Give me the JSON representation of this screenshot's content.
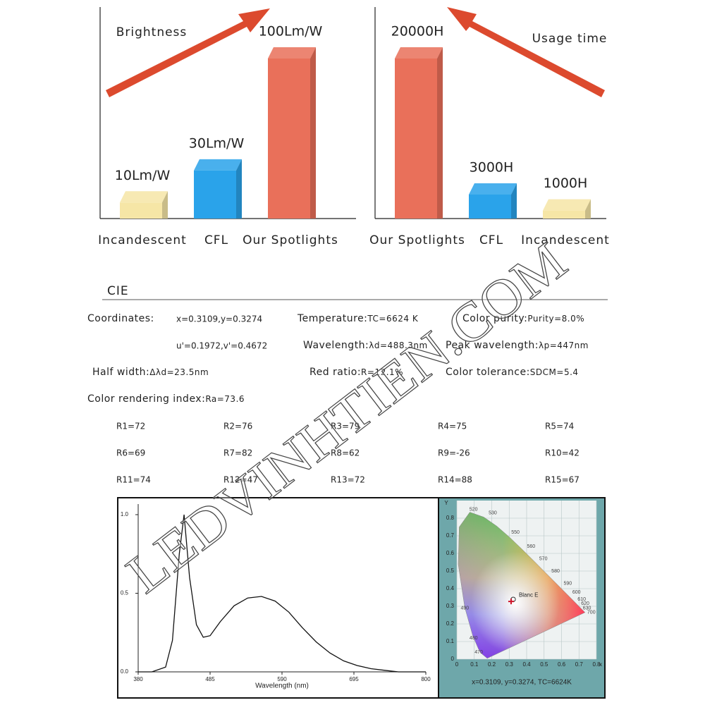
{
  "chart_data": [
    {
      "type": "bar",
      "annotation": "Brightness",
      "categories": [
        "Incandescent",
        "CFL",
        "Our Spotlights"
      ],
      "values": [
        10,
        30,
        100
      ],
      "value_labels": [
        "10Lm/W",
        "30Lm/W",
        "100Lm/W"
      ],
      "colors": [
        "#f6e6a6",
        "#2aa3ea",
        "#e9705a"
      ],
      "ylim": [
        0,
        100
      ]
    },
    {
      "type": "bar",
      "annotation": "Usage time",
      "categories": [
        "Our Spotlights",
        "CFL",
        "Incandescent"
      ],
      "values": [
        20000,
        3000,
        1000
      ],
      "value_labels": [
        "20000H",
        "3000H",
        "1000H"
      ],
      "colors": [
        "#e9705a",
        "#2aa3ea",
        "#f6e6a6"
      ],
      "ylim": [
        0,
        20000
      ]
    },
    {
      "type": "line",
      "xlabel": "Wavelength (nm)",
      "color": "#111",
      "x": [
        380,
        400,
        420,
        430,
        440,
        447,
        455,
        465,
        475,
        485,
        500,
        520,
        540,
        560,
        580,
        600,
        620,
        640,
        660,
        680,
        700,
        720,
        740,
        760,
        780,
        800
      ],
      "values": [
        0,
        0,
        0.03,
        0.2,
        0.75,
        1.0,
        0.6,
        0.3,
        0.22,
        0.23,
        0.32,
        0.42,
        0.47,
        0.48,
        0.45,
        0.38,
        0.28,
        0.19,
        0.12,
        0.07,
        0.04,
        0.02,
        0.01,
        0,
        0,
        0
      ],
      "xlim": [
        380,
        800
      ],
      "xticks": [
        380,
        485,
        590,
        695,
        800
      ],
      "ylim": [
        0,
        1
      ],
      "yticks": [
        {
          "value": 0,
          "label": "0.0"
        },
        0.5,
        {
          "value": 1,
          "label": "1.0"
        }
      ]
    },
    {
      "type": "scatter",
      "xlabel": "x",
      "ylabel": "Y",
      "color": "#d0142a",
      "x": [
        0.3109
      ],
      "values": [
        0.3274
      ],
      "point_label": "Blanc E",
      "caption": "x=0.3109, y=0.3274, TC=6624K",
      "locus_labels": [
        "520",
        "530",
        "550",
        "560",
        "570",
        "580",
        "590",
        "600",
        "610",
        "620",
        "630",
        "700",
        "490",
        "480",
        "470"
      ],
      "xlim": [
        0,
        0.8
      ],
      "xticks": [
        0,
        0.1,
        0.2,
        0.3,
        0.4,
        0.5,
        0.6,
        0.7,
        0.8
      ],
      "ylim": [
        0,
        0.9
      ],
      "yticks": [
        0,
        0.1,
        0.2,
        0.3,
        0.4,
        0.5,
        0.6,
        0.7,
        0.8
      ]
    }
  ],
  "cie": {
    "title": "CIE",
    "coordinates": {
      "label": "Coordinates:",
      "values": [
        "x=0.3109,y=0.3274",
        "u'=0.1972,v'=0.4672"
      ]
    },
    "fields": [
      {
        "label": "Temperature:",
        "value": "TC=6624 K"
      },
      {
        "label": "Color purity:",
        "value": "Purity=8.0%"
      },
      {
        "label": "Wavelength:",
        "value": "λd=488.3nm"
      },
      {
        "label": "Peak wavelength:",
        "value": "λp=447nm"
      },
      {
        "label": "Half width:",
        "value": "Δλd=23.5nm"
      },
      {
        "label": "Red ratio:",
        "value": "R=12.1%"
      },
      {
        "label": "Color tolerance:",
        "value": "SDCM=5.4"
      },
      {
        "label": "Color rendering index:",
        "value": "Ra=73.6"
      }
    ],
    "rendering": [
      "R1=72",
      "R2=76",
      "R3=79",
      "R4=75",
      "R5=74",
      "R6=69",
      "R7=82",
      "R8=62",
      "R9=-26",
      "R10=42",
      "R11=74",
      "R12=47",
      "R13=72",
      "R14=88",
      "R15=67"
    ]
  },
  "watermark": "LEDVINHTIEN.COM"
}
